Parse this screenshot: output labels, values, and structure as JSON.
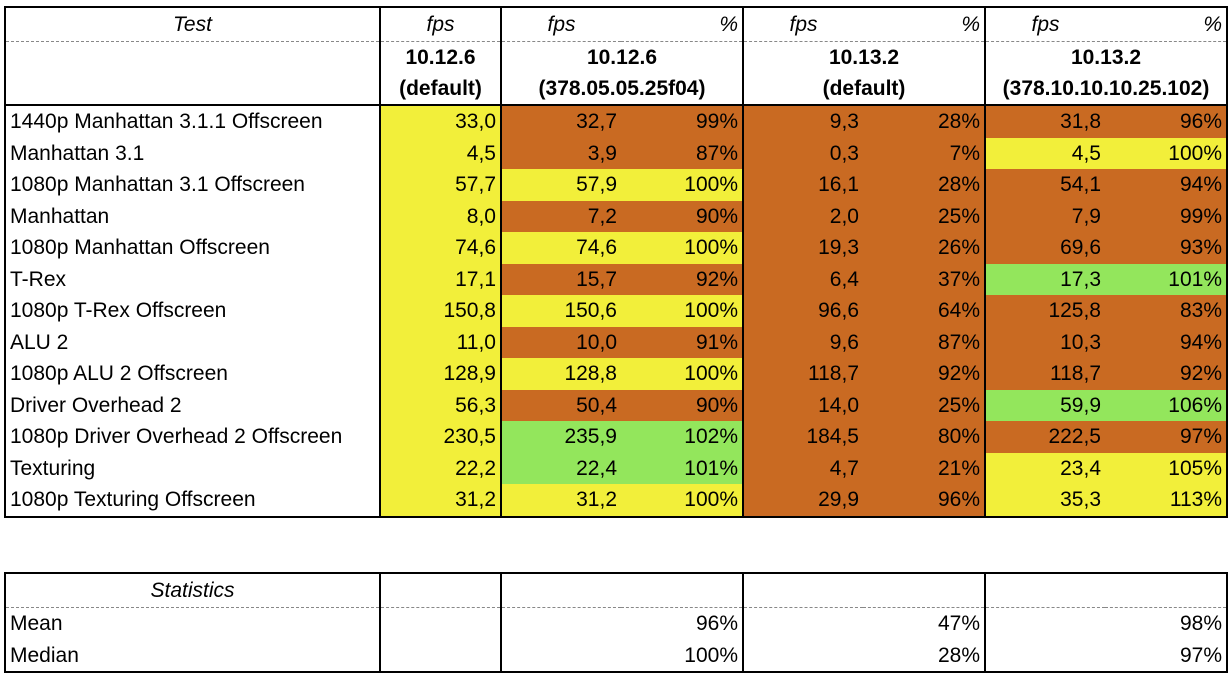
{
  "palette": {
    "yellow": "#f2ef3a",
    "orange": "#c96a22",
    "green": "#93e65c"
  },
  "header": {
    "test_label": "Test",
    "fps_label": "fps",
    "pct_label": "%",
    "configs": [
      {
        "line1": "10.12.6",
        "line2": "(default)"
      },
      {
        "line1": "10.12.6",
        "line2": "(378.05.05.25f04)"
      },
      {
        "line1": "10.13.2",
        "line2": "(default)"
      },
      {
        "line1": "10.13.2",
        "line2": "(378.10.10.10.25.102)"
      }
    ]
  },
  "rows": [
    {
      "test": "1440p Manhattan 3.1.1 Offscreen",
      "base": "33,0",
      "c1": [
        "32,7",
        "99%",
        "orange"
      ],
      "c2": [
        "9,3",
        "28%",
        "orange"
      ],
      "c3": [
        "31,8",
        "96%",
        "orange"
      ]
    },
    {
      "test": "Manhattan 3.1",
      "base": "4,5",
      "c1": [
        "3,9",
        "87%",
        "orange"
      ],
      "c2": [
        "0,3",
        "7%",
        "orange"
      ],
      "c3": [
        "4,5",
        "100%",
        "yellow"
      ]
    },
    {
      "test": "1080p Manhattan 3.1 Offscreen",
      "base": "57,7",
      "c1": [
        "57,9",
        "100%",
        "yellow"
      ],
      "c2": [
        "16,1",
        "28%",
        "orange"
      ],
      "c3": [
        "54,1",
        "94%",
        "orange"
      ]
    },
    {
      "test": "Manhattan",
      "base": "8,0",
      "c1": [
        "7,2",
        "90%",
        "orange"
      ],
      "c2": [
        "2,0",
        "25%",
        "orange"
      ],
      "c3": [
        "7,9",
        "99%",
        "orange"
      ]
    },
    {
      "test": "1080p Manhattan Offscreen",
      "base": "74,6",
      "c1": [
        "74,6",
        "100%",
        "yellow"
      ],
      "c2": [
        "19,3",
        "26%",
        "orange"
      ],
      "c3": [
        "69,6",
        "93%",
        "orange"
      ]
    },
    {
      "test": "T-Rex",
      "base": "17,1",
      "c1": [
        "15,7",
        "92%",
        "orange"
      ],
      "c2": [
        "6,4",
        "37%",
        "orange"
      ],
      "c3": [
        "17,3",
        "101%",
        "green"
      ]
    },
    {
      "test": "1080p T-Rex Offscreen",
      "base": "150,8",
      "c1": [
        "150,6",
        "100%",
        "yellow"
      ],
      "c2": [
        "96,6",
        "64%",
        "orange"
      ],
      "c3": [
        "125,8",
        "83%",
        "orange"
      ]
    },
    {
      "test": "ALU 2",
      "base": "11,0",
      "c1": [
        "10,0",
        "91%",
        "orange"
      ],
      "c2": [
        "9,6",
        "87%",
        "orange"
      ],
      "c3": [
        "10,3",
        "94%",
        "orange"
      ]
    },
    {
      "test": "1080p ALU 2 Offscreen",
      "base": "128,9",
      "c1": [
        "128,8",
        "100%",
        "yellow"
      ],
      "c2": [
        "118,7",
        "92%",
        "orange"
      ],
      "c3": [
        "118,7",
        "92%",
        "orange"
      ]
    },
    {
      "test": "Driver Overhead 2",
      "base": "56,3",
      "c1": [
        "50,4",
        "90%",
        "orange"
      ],
      "c2": [
        "14,0",
        "25%",
        "orange"
      ],
      "c3": [
        "59,9",
        "106%",
        "green"
      ]
    },
    {
      "test": "1080p Driver Overhead 2 Offscreen",
      "base": "230,5",
      "c1": [
        "235,9",
        "102%",
        "green"
      ],
      "c2": [
        "184,5",
        "80%",
        "orange"
      ],
      "c3": [
        "222,5",
        "97%",
        "orange"
      ]
    },
    {
      "test": "Texturing",
      "base": "22,2",
      "c1": [
        "22,4",
        "101%",
        "green"
      ],
      "c2": [
        "4,7",
        "21%",
        "orange"
      ],
      "c3": [
        "23,4",
        "105%",
        "yellow"
      ]
    },
    {
      "test": "1080p Texturing Offscreen",
      "base": "31,2",
      "c1": [
        "31,2",
        "100%",
        "yellow"
      ],
      "c2": [
        "29,9",
        "96%",
        "orange"
      ],
      "c3": [
        "35,3",
        "113%",
        "yellow"
      ]
    }
  ],
  "statistics": {
    "label": "Statistics",
    "rows": [
      {
        "name": "Mean",
        "values": [
          "96%",
          "47%",
          "98%"
        ]
      },
      {
        "name": "Median",
        "values": [
          "100%",
          "28%",
          "97%"
        ]
      }
    ]
  }
}
